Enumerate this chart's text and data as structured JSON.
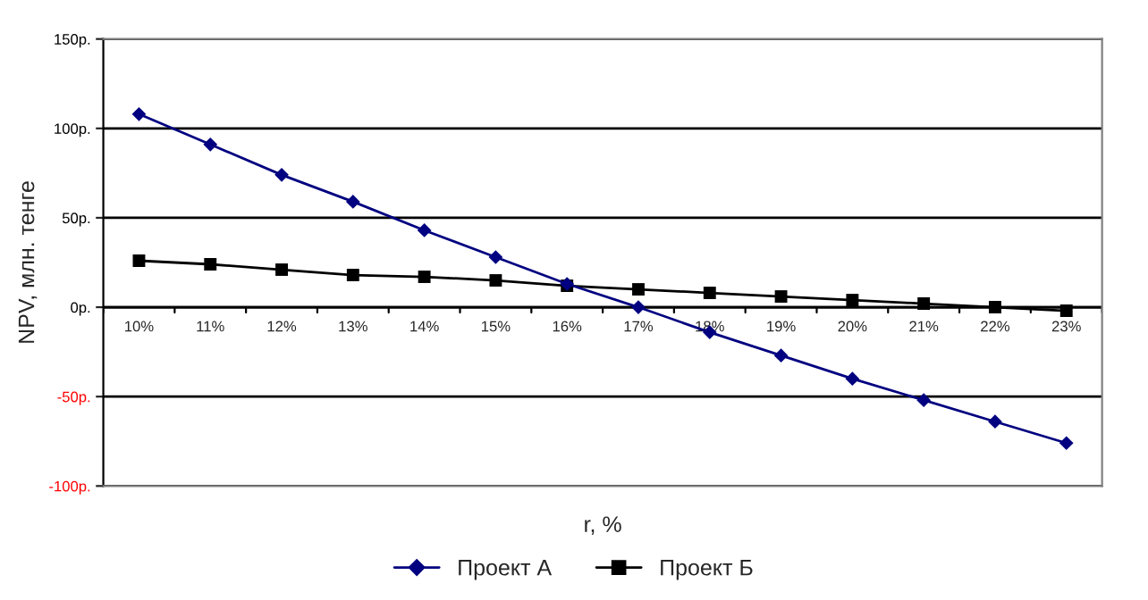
{
  "chart_data": {
    "type": "line",
    "xlabel": "r, %",
    "ylabel": "NPV, млн. тенге",
    "categories": [
      "10%",
      "11%",
      "12%",
      "13%",
      "14%",
      "15%",
      "16%",
      "17%",
      "18%",
      "19%",
      "20%",
      "21%",
      "22%",
      "23%"
    ],
    "series": [
      {
        "name": "Проект А",
        "color": "#000080",
        "marker": "diamond",
        "values": [
          108,
          91,
          74,
          59,
          43,
          28,
          13,
          0,
          -14,
          -27,
          -40,
          -52,
          -64,
          -76
        ]
      },
      {
        "name": "Проект Б",
        "color": "#000000",
        "marker": "square",
        "values": [
          26,
          24,
          21,
          18,
          17,
          15,
          12,
          10,
          8,
          6,
          4,
          2,
          0,
          -2
        ]
      }
    ],
    "ylim": [
      -100,
      150
    ],
    "yticks": [
      {
        "value": -100,
        "label": "-100р."
      },
      {
        "value": -50,
        "label": "-50р."
      },
      {
        "value": 0,
        "label": "0р."
      },
      {
        "value": 50,
        "label": "50р."
      },
      {
        "value": 100,
        "label": "100р."
      },
      {
        "value": 150,
        "label": "150р."
      }
    ],
    "grid": "y",
    "legend": "bottom",
    "line_style": "solid"
  }
}
